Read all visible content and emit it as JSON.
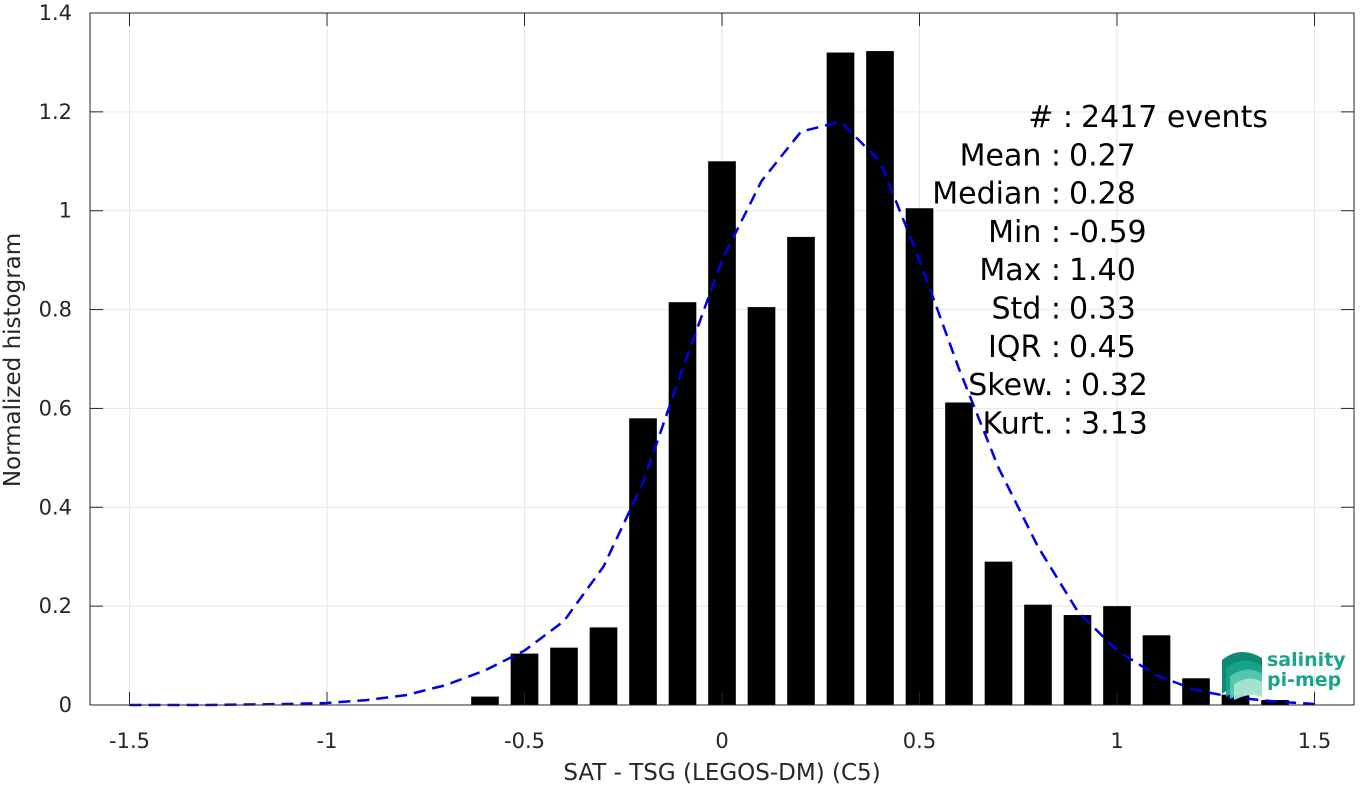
{
  "chart_data": {
    "type": "bar",
    "xlabel": "SAT - TSG (LEGOS-DM) (C5)",
    "ylabel": "Normalized histogram",
    "xlim": [
      -1.6,
      1.6
    ],
    "ylim": [
      0,
      1.4
    ],
    "xticks": [
      -1.5,
      -1,
      -0.5,
      0,
      0.5,
      1,
      1.5
    ],
    "xtick_labels": [
      "-1.5",
      "-1",
      "-0.5",
      "0",
      "0.5",
      "1",
      "1.5"
    ],
    "yticks": [
      0,
      0.2,
      0.4,
      0.6,
      0.8,
      1,
      1.2,
      1.4
    ],
    "ytick_labels": [
      "0",
      "0.2",
      "0.4",
      "0.6",
      "0.8",
      "1",
      "1.2",
      "1.4"
    ],
    "grid": true,
    "bar_color": "#000000",
    "bar_width": 0.07,
    "bars": {
      "x": [
        -0.6,
        -0.5,
        -0.4,
        -0.3,
        -0.2,
        -0.1,
        0.0,
        0.1,
        0.2,
        0.3,
        0.4,
        0.5,
        0.6,
        0.7,
        0.8,
        0.9,
        1.0,
        1.1,
        1.2,
        1.3,
        1.4
      ],
      "values": [
        0.017,
        0.104,
        0.116,
        0.157,
        0.58,
        0.815,
        1.1,
        0.805,
        0.947,
        1.32,
        1.323,
        1.005,
        0.612,
        0.29,
        0.203,
        0.182,
        0.2,
        0.141,
        0.054,
        0.021,
        0.01
      ]
    },
    "fit_curve": {
      "style": "dashed",
      "color": "#0000e6",
      "x": [
        -1.5,
        -1.4,
        -1.3,
        -1.2,
        -1.1,
        -1.0,
        -0.9,
        -0.8,
        -0.7,
        -0.6,
        -0.5,
        -0.4,
        -0.3,
        -0.2,
        -0.1,
        0.0,
        0.1,
        0.2,
        0.25,
        0.3,
        0.4,
        0.5,
        0.6,
        0.7,
        0.8,
        0.9,
        1.0,
        1.1,
        1.2,
        1.3,
        1.4,
        1.5
      ],
      "y": [
        0.0,
        0.0,
        0.0,
        0.001,
        0.002,
        0.004,
        0.01,
        0.02,
        0.04,
        0.07,
        0.11,
        0.17,
        0.28,
        0.45,
        0.68,
        0.9,
        1.06,
        1.16,
        1.17,
        1.18,
        1.1,
        0.9,
        0.68,
        0.48,
        0.32,
        0.19,
        0.11,
        0.06,
        0.03,
        0.015,
        0.007,
        0.002
      ]
    },
    "annotations": [
      {
        "label": "#  :",
        "value": "2417 events"
      },
      {
        "label": "Mean :",
        "value": "0.27"
      },
      {
        "label": "Median :",
        "value": "0.28"
      },
      {
        "label": "Min :",
        "value": "-0.59"
      },
      {
        "label": "Max :",
        "value": "1.40"
      },
      {
        "label": "Std :",
        "value": "0.33"
      },
      {
        "label": "IQR :",
        "value": "0.45"
      },
      {
        "label": "Skew. :",
        "value": "0.32"
      },
      {
        "label": "Kurt. :",
        "value": "3.13"
      }
    ]
  },
  "logo": {
    "line1": "salinity",
    "line2": "pi-mep",
    "colors": [
      "#1aa58a",
      "#5cc9b0",
      "#a8e3d3",
      "#0e8a74"
    ]
  }
}
